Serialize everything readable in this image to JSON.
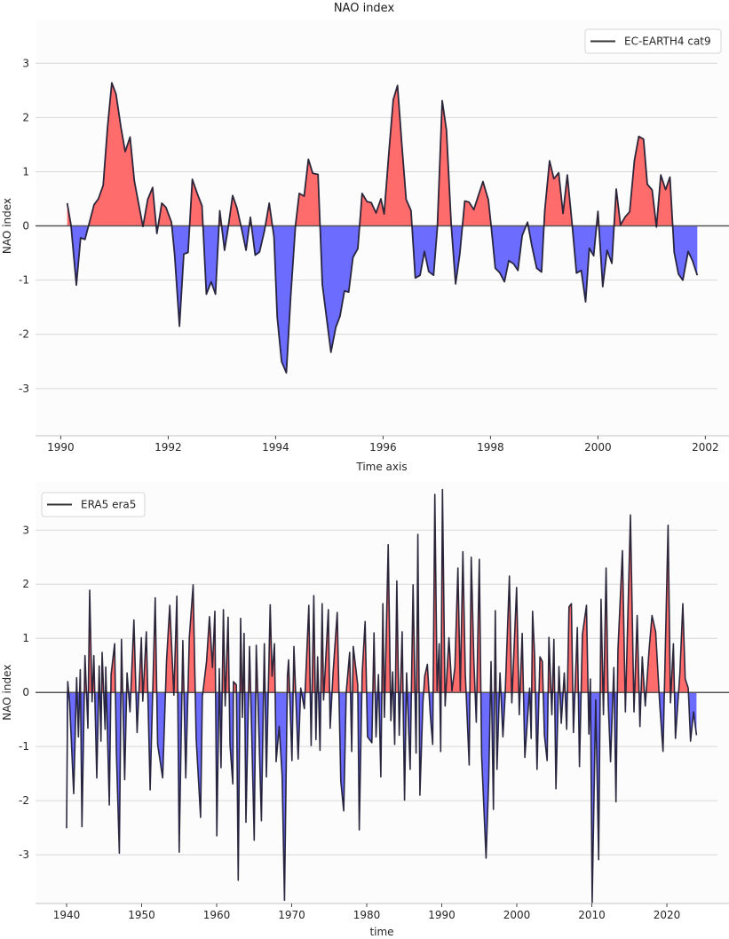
{
  "figure_title": "NAO index",
  "colors": {
    "positive_fill": "#ff6464",
    "negative_fill": "#6464ff",
    "line": "#1c1a30",
    "zero_line": "#555555",
    "grid": "#d8d8d8",
    "plot_bg": "#fcfcfc"
  },
  "chart_data": [
    {
      "type": "area",
      "title": "NAO index",
      "xlabel": "Time axis",
      "ylabel": "NAO index",
      "xlim": [
        1989.53,
        2002.44
      ],
      "ylim": [
        -3.87,
        3.79
      ],
      "grid": true,
      "legend_position": "top-right",
      "xticks": [
        1990,
        1992,
        1994,
        1996,
        1998,
        2000,
        2002
      ],
      "xtick_labels": [
        "1990",
        "1992",
        "1994",
        "1996",
        "1998",
        "2000",
        "2002"
      ],
      "yticks": [
        3,
        2,
        1,
        0,
        -1,
        -2,
        -3
      ],
      "ytick_labels": [
        "3",
        "2",
        "1",
        "0",
        "-1",
        "-2",
        "-3"
      ],
      "series": [
        {
          "name": "EC-EARTH4 cat9",
          "x": [
            1990.12,
            1990.19,
            1990.29,
            1990.37,
            1990.45,
            1990.62,
            1990.7,
            1990.79,
            1990.87,
            1990.95,
            1991.03,
            1991.12,
            1991.2,
            1991.29,
            1991.37,
            1991.46,
            1991.53,
            1991.62,
            1991.71,
            1991.79,
            1991.88,
            1991.96,
            1992.06,
            1992.12,
            1992.21,
            1992.29,
            1992.37,
            1992.45,
            1992.54,
            1992.63,
            1992.71,
            1992.8,
            1992.88,
            1992.96,
            1993.05,
            1993.11,
            1993.2,
            1993.28,
            1993.37,
            1993.45,
            1993.53,
            1993.62,
            1993.7,
            1993.79,
            1993.88,
            1993.97,
            1994.03,
            1994.11,
            1994.2,
            1994.28,
            1994.37,
            1994.44,
            1994.53,
            1994.61,
            1994.69,
            1994.79,
            1994.87,
            1994.96,
            1995.03,
            1995.12,
            1995.2,
            1995.28,
            1995.36,
            1995.44,
            1995.53,
            1995.61,
            1995.7,
            1995.78,
            1995.87,
            1995.96,
            1996.02,
            1996.11,
            1996.19,
            1996.27,
            1996.35,
            1996.43,
            1996.52,
            1996.6,
            1996.69,
            1996.77,
            1996.85,
            1996.94,
            1997.01,
            1997.1,
            1997.18,
            1997.27,
            1997.35,
            1997.43,
            1997.52,
            1997.6,
            1997.69,
            1997.86,
            1997.96,
            1998.01,
            1998.09,
            1998.17,
            1998.26,
            1998.34,
            1998.43,
            1998.51,
            1998.59,
            1998.69,
            1998.77,
            1998.86,
            1998.95,
            1999.01,
            1999.1,
            1999.18,
            1999.27,
            1999.35,
            1999.43,
            1999.52,
            1999.6,
            1999.69,
            1999.77,
            1999.84,
            1999.92,
            2000.0,
            2000.09,
            2000.17,
            2000.26,
            2000.34,
            2000.42,
            2000.51,
            2000.59,
            2000.68,
            2000.76,
            2000.85,
            2000.92,
            2001.01,
            2001.09,
            2001.17,
            2001.26,
            2001.34,
            2001.42,
            2001.5,
            2001.58,
            2001.68,
            2001.76,
            2001.85
          ],
          "y": [
            0.42,
            0.02,
            -1.09,
            -0.22,
            -0.25,
            0.39,
            0.5,
            0.75,
            1.82,
            2.64,
            2.43,
            1.82,
            1.37,
            1.64,
            0.83,
            0.35,
            -0.01,
            0.49,
            0.71,
            -0.14,
            0.42,
            0.34,
            0.07,
            -0.54,
            -1.85,
            -0.52,
            -0.49,
            0.86,
            0.6,
            0.37,
            -1.26,
            -1.03,
            -1.26,
            0.28,
            -0.45,
            -0.07,
            0.56,
            0.33,
            -0.07,
            -0.45,
            0.16,
            -0.54,
            -0.48,
            -0.1,
            0.42,
            -0.21,
            -1.68,
            -2.5,
            -2.71,
            -1.3,
            0.01,
            0.6,
            0.55,
            1.23,
            0.97,
            0.95,
            -1.08,
            -1.79,
            -2.33,
            -1.87,
            -1.66,
            -1.2,
            -1.22,
            -0.58,
            -0.42,
            0.6,
            0.45,
            0.43,
            0.24,
            0.5,
            0.22,
            1.38,
            2.33,
            2.59,
            1.49,
            0.49,
            0.28,
            -0.96,
            -0.91,
            -0.47,
            -0.84,
            -0.91,
            -0.04,
            2.31,
            1.77,
            0.01,
            -1.07,
            -0.51,
            0.46,
            0.44,
            0.3,
            0.82,
            0.48,
            0.02,
            -0.78,
            -0.86,
            -1.03,
            -0.64,
            -0.7,
            -0.82,
            -0.18,
            0.07,
            -0.37,
            -0.78,
            -0.85,
            0.28,
            1.2,
            0.87,
            0.98,
            0.23,
            0.94,
            0.02,
            -0.87,
            -0.82,
            -1.4,
            -0.41,
            -0.55,
            0.27,
            -1.12,
            -0.45,
            -0.69,
            0.68,
            0.02,
            0.17,
            0.26,
            1.21,
            1.65,
            1.6,
            0.77,
            0.66,
            -0.02,
            0.94,
            0.67,
            0.9,
            -0.49,
            -0.89,
            -1.0,
            -0.47,
            -0.64,
            -0.91
          ]
        }
      ]
    },
    {
      "type": "area",
      "title": "",
      "xlabel": "time",
      "ylabel": "NAO index",
      "xlim": [
        1935.86,
        2028.28
      ],
      "ylim": [
        -3.9,
        3.89
      ],
      "grid": true,
      "legend_position": "top-left",
      "xticks": [
        1940,
        1950,
        1960,
        1970,
        1980,
        1990,
        2000,
        2010,
        2020
      ],
      "xtick_labels": [
        "1940",
        "1950",
        "1960",
        "1970",
        "1980",
        "1990",
        "2000",
        "2010",
        "2020"
      ],
      "yticks": [
        3,
        2,
        1,
        0,
        -1,
        -2,
        -3
      ],
      "ytick_labels": [
        "3",
        "2",
        "1",
        "0",
        "-1",
        "-2",
        "-3"
      ],
      "series": [
        {
          "name": "ERA5 era5",
          "x": [
            1940.0,
            1940.16,
            1940.4,
            1940.95,
            1941.34,
            1941.58,
            1941.82,
            1942.05,
            1942.45,
            1942.84,
            1943.08,
            1943.4,
            1943.63,
            1944.03,
            1944.35,
            1944.58,
            1944.74,
            1945.14,
            1945.22,
            1945.69,
            1945.93,
            1946.4,
            1946.64,
            1947.03,
            1947.31,
            1947.74,
            1948.06,
            1948.45,
            1948.97,
            1949.4,
            1949.96,
            1950.15,
            1950.63,
            1951.14,
            1951.81,
            1952.13,
            1952.8,
            1953.31,
            1953.75,
            1954.3,
            1954.7,
            1955.01,
            1955.49,
            1955.88,
            1956.36,
            1956.87,
            1957.27,
            1957.86,
            1958.1,
            1958.65,
            1959.04,
            1959.44,
            1959.76,
            1960.03,
            1960.35,
            1960.58,
            1960.9,
            1961.14,
            1961.53,
            1961.77,
            1962.16,
            1962.24,
            1962.63,
            1962.88,
            1963.19,
            1963.43,
            1963.66,
            1963.9,
            1964.38,
            1964.61,
            1965.01,
            1965.28,
            1965.56,
            1965.96,
            1966.35,
            1966.63,
            1967.14,
            1967.38,
            1967.7,
            1967.93,
            1968.33,
            1968.72,
            1969.04,
            1969.43,
            1969.59,
            1970.03,
            1970.3,
            1970.86,
            1971.21,
            1971.69,
            1972.28,
            1972.59,
            1972.95,
            1973.23,
            1973.46,
            1973.78,
            1974.06,
            1974.25,
            1974.89,
            1975.12,
            1975.52,
            1976.07,
            1976.54,
            1976.94,
            1977.26,
            1977.73,
            1978.0,
            1978.2,
            1978.8,
            1979.0,
            1979.39,
            1979.79,
            1980.1,
            1980.69,
            1980.97,
            1981.24,
            1981.56,
            1981.88,
            1982.15,
            1982.35,
            1982.86,
            1983.22,
            1983.46,
            1983.73,
            1984.01,
            1984.33,
            1984.72,
            1985.04,
            1985.31,
            1985.79,
            1986.18,
            1986.58,
            1986.81,
            1987.09,
            1987.49,
            1987.73,
            1988.08,
            1988.47,
            1988.79,
            1989.07,
            1989.38,
            1989.66,
            1989.86,
            1990.09,
            1990.45,
            1990.96,
            1991.36,
            1991.75,
            1992.15,
            1992.47,
            1992.82,
            1993.14,
            1993.65,
            1993.93,
            1994.28,
            1994.6,
            1995.0,
            1995.31,
            1995.9,
            1996.26,
            1996.57,
            1996.89,
            1997.13,
            1997.36,
            1997.76,
            1998.15,
            1998.43,
            1999.02,
            1999.34,
            1999.97,
            2000.33,
            2000.72,
            2001.08,
            2001.71,
            2001.91,
            2002.1,
            2002.38,
            2002.7,
            2003.09,
            2003.41,
            2003.68,
            2004.04,
            2004.28,
            2004.67,
            2004.95,
            2005.22,
            2005.62,
            2005.93,
            2006.33,
            2006.65,
            2006.96,
            2007.28,
            2007.55,
            2008.07,
            2008.35,
            2008.74,
            2009.29,
            2009.61,
            2009.81,
            2010.04,
            2010.52,
            2010.91,
            2011.23,
            2011.55,
            2011.9,
            2012.18,
            2012.49,
            2012.93,
            2013.21,
            2013.48,
            2014.08,
            2014.47,
            2015.14,
            2015.62,
            2016.05,
            2016.41,
            2016.72,
            2017.12,
            2017.63,
            2018.02,
            2018.5,
            2019.05,
            2019.49,
            2020.16,
            2020.48,
            2020.87,
            2021.15,
            2021.74,
            2022.13,
            2022.45,
            2022.85,
            2023.16,
            2023.56,
            2023.95
          ],
          "y": [
            -2.51,
            0.2,
            -0.19,
            -1.87,
            0.27,
            -0.82,
            0.42,
            -2.48,
            0.68,
            -0.66,
            1.89,
            -0.17,
            0.68,
            -1.58,
            0.49,
            -0.9,
            0.74,
            -0.68,
            0.47,
            -2.08,
            0.33,
            0.9,
            -1.12,
            -2.97,
            0.98,
            -1.61,
            0.36,
            -0.36,
            1.34,
            -0.74,
            1.01,
            -0.16,
            1.12,
            -1.8,
            1.75,
            -0.96,
            -1.58,
            0.57,
            1.61,
            -0.05,
            1.78,
            -2.95,
            0.96,
            -1.58,
            1.01,
            1.99,
            -0.85,
            -2.31,
            -0.08,
            0.57,
            1.4,
            0.46,
            1.5,
            -2.65,
            0.44,
            -1.39,
            1.53,
            -0.25,
            1.39,
            -0.96,
            -1.69,
            0.2,
            0.14,
            -3.47,
            1.37,
            -0.46,
            1.09,
            -2.4,
            0.85,
            -0.44,
            -2.73,
            0.87,
            -0.41,
            -2.37,
            0.9,
            -1.56,
            1.62,
            0.3,
            0.9,
            -1.28,
            -0.63,
            -1.53,
            -3.84,
            0.3,
            0.6,
            -1.26,
            0.85,
            -1.23,
            0.08,
            -0.3,
            1.61,
            -0.98,
            1.79,
            -0.87,
            0.66,
            -1.07,
            1.64,
            -0.14,
            1.53,
            -0.66,
            0.36,
            1.48,
            -1.64,
            -2.19,
            0.0,
            0.74,
            -1.09,
            0.85,
            0.14,
            -2.54,
            0.36,
            1.31,
            -0.82,
            -0.93,
            1.1,
            -0.82,
            0.33,
            -1.56,
            1.64,
            -0.46,
            2.73,
            -0.52,
            0.38,
            -0.96,
            2.06,
            -0.79,
            1.12,
            -1.99,
            0.36,
            -1.42,
            1.99,
            -1.12,
            2.92,
            -1.9,
            -0.19,
            0.3,
            0.52,
            -0.41,
            -0.96,
            3.66,
            0.03,
            0.9,
            -1.09,
            3.75,
            -0.25,
            1.01,
            0.03,
            0.46,
            2.3,
            0.03,
            2.6,
            0.36,
            -1.34,
            2.5,
            0.57,
            -0.55,
            2.46,
            -1.17,
            -3.06,
            -1.61,
            0.57,
            -2.16,
            1.51,
            -1.42,
            0.36,
            -0.82,
            -0.08,
            2.15,
            -0.19,
            1.94,
            -0.41,
            1.09,
            -1.2,
            0.08,
            -0.85,
            1.5,
            0.68,
            -1.42,
            0.66,
            0.57,
            -0.79,
            -1.26,
            1.02,
            -0.41,
            0.98,
            -1.78,
            0.48,
            -0.57,
            0.36,
            -0.68,
            1.58,
            1.64,
            -0.74,
            1.2,
            -1.37,
            1.07,
            1.61,
            -0.77,
            0.25,
            -3.88,
            -0.14,
            -3.09,
            1.72,
            -0.41,
            2.3,
            -0.16,
            -1.28,
            0.46,
            -2.02,
            0.77,
            2.62,
            -0.36,
            3.28,
            -0.36,
            1.42,
            -0.63,
            0.66,
            -0.25,
            0.79,
            1.42,
            1.12,
            -0.22,
            -1.09,
            3.09,
            -0.19,
            0.9,
            -0.85,
            0.36,
            1.64,
            0.25,
            0.08,
            -0.9,
            -0.36,
            -0.79
          ]
        }
      ]
    }
  ]
}
